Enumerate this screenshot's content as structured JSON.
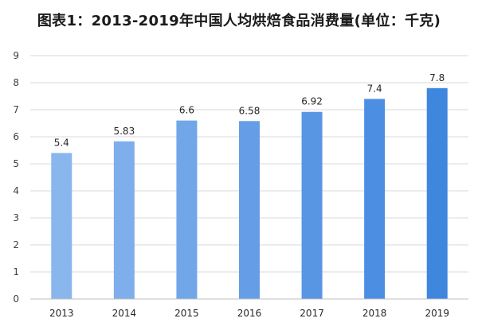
{
  "chart_data": {
    "type": "bar",
    "title": "图表1：2013-2019年中国人均烘焙食品消费量(单位：千克)",
    "categories": [
      "2013",
      "2014",
      "2015",
      "2016",
      "2017",
      "2018",
      "2019"
    ],
    "values": [
      5.4,
      5.83,
      6.6,
      6.58,
      6.92,
      7.4,
      7.8
    ],
    "value_labels": [
      "5.4",
      "5.83",
      "6.6",
      "6.58",
      "6.92",
      "7.4",
      "7.8"
    ],
    "yticks": [
      "0",
      "1",
      "2",
      "3",
      "4",
      "5",
      "6",
      "7",
      "8",
      "9"
    ],
    "ylim": [
      0,
      9
    ],
    "grid": true,
    "legend": "none",
    "bar_color_start": "#8ab6ee",
    "bar_color_end": "#3f86df"
  }
}
